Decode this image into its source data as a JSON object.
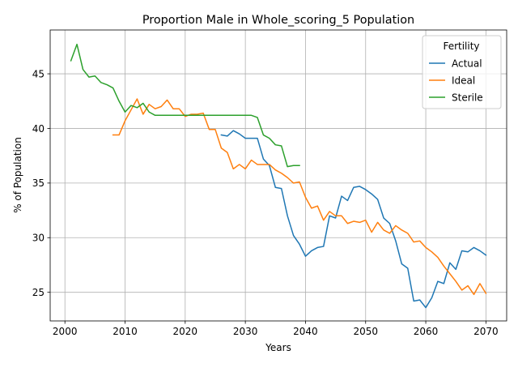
{
  "chart_data": {
    "type": "line",
    "title": "Proportion Male in Whole_scoring_5 Population",
    "xlabel": "Years",
    "ylabel": "% of Population",
    "xlim": [
      1997.55,
      2073.45
    ],
    "ylim": [
      22.38,
      49.01
    ],
    "xticks": [
      2000,
      2010,
      2020,
      2030,
      2040,
      2050,
      2060,
      2070
    ],
    "yticks": [
      25,
      30,
      35,
      40,
      45
    ],
    "grid": true,
    "legend": {
      "title": "Fertility",
      "placement": "top-right"
    },
    "series": [
      {
        "name": "Actual",
        "color": "#1f77b4",
        "x": [
          2026,
          2027,
          2028,
          2029,
          2030,
          2031,
          2032,
          2033,
          2034,
          2035,
          2036,
          2037,
          2038,
          2039,
          2040,
          2041,
          2042,
          2043,
          2044,
          2045,
          2046,
          2047,
          2048,
          2049,
          2050,
          2051,
          2052,
          2053,
          2054,
          2055,
          2056,
          2057,
          2058,
          2059,
          2060,
          2061,
          2062,
          2063,
          2064,
          2065,
          2066,
          2067,
          2068,
          2069,
          2070
        ],
        "values": [
          39.4,
          39.3,
          39.8,
          39.5,
          39.1,
          39.1,
          39.1,
          37.2,
          36.6,
          34.6,
          34.5,
          32.0,
          30.2,
          29.4,
          28.3,
          28.8,
          29.1,
          29.2,
          32.0,
          31.8,
          33.8,
          33.4,
          34.6,
          34.7,
          34.4,
          34.0,
          33.5,
          31.8,
          31.3,
          29.7,
          27.6,
          27.2,
          24.2,
          24.3,
          23.6,
          24.5,
          26.0,
          25.8,
          27.7,
          27.1,
          28.8,
          28.7,
          29.1,
          28.8,
          28.4
        ]
      },
      {
        "name": "Ideal",
        "color": "#ff7f0e",
        "x": [
          2008,
          2009,
          2010,
          2011,
          2012,
          2013,
          2014,
          2015,
          2016,
          2017,
          2018,
          2019,
          2020,
          2021,
          2022,
          2023,
          2024,
          2025,
          2026,
          2027,
          2028,
          2029,
          2030,
          2031,
          2032,
          2033,
          2034,
          2035,
          2036,
          2037,
          2038,
          2039,
          2040,
          2041,
          2042,
          2043,
          2044,
          2045,
          2046,
          2047,
          2048,
          2049,
          2050,
          2051,
          2052,
          2053,
          2054,
          2055,
          2056,
          2057,
          2058,
          2059,
          2060,
          2061,
          2062,
          2063,
          2064,
          2065,
          2066,
          2067,
          2068,
          2069,
          2070
        ],
        "values": [
          39.4,
          39.4,
          40.7,
          41.7,
          42.7,
          41.3,
          42.2,
          41.8,
          42.0,
          42.6,
          41.8,
          41.8,
          41.1,
          41.3,
          41.3,
          41.4,
          39.9,
          39.9,
          38.2,
          37.8,
          36.3,
          36.7,
          36.3,
          37.1,
          36.7,
          36.7,
          36.7,
          36.2,
          35.9,
          35.5,
          35.0,
          35.1,
          33.7,
          32.7,
          32.9,
          31.6,
          32.4,
          32.0,
          32.0,
          31.3,
          31.5,
          31.4,
          31.6,
          30.5,
          31.4,
          30.7,
          30.4,
          31.1,
          30.7,
          30.4,
          29.6,
          29.7,
          29.1,
          28.7,
          28.2,
          27.4,
          26.7,
          26.0,
          25.2,
          25.6,
          24.8,
          25.8,
          24.9
        ]
      },
      {
        "name": "Sterile",
        "color": "#2ca02c",
        "x": [
          2001,
          2002,
          2003,
          2004,
          2005,
          2006,
          2007,
          2008,
          2009,
          2010,
          2011,
          2012,
          2013,
          2014,
          2015,
          2016,
          2017,
          2018,
          2019,
          2020,
          2021,
          2022,
          2023,
          2024,
          2025,
          2026,
          2027,
          2028,
          2029,
          2030,
          2031,
          2032,
          2033,
          2034,
          2035,
          2036,
          2037,
          2038,
          2039
        ],
        "values": [
          46.2,
          47.7,
          45.4,
          44.7,
          44.8,
          44.2,
          44.0,
          43.7,
          42.5,
          41.5,
          42.1,
          41.9,
          42.3,
          41.5,
          41.2,
          41.2,
          41.2,
          41.2,
          41.2,
          41.2,
          41.2,
          41.2,
          41.2,
          41.2,
          41.2,
          41.2,
          41.2,
          41.2,
          41.2,
          41.2,
          41.2,
          41.0,
          39.4,
          39.1,
          38.5,
          38.4,
          36.5,
          36.6,
          36.6
        ]
      }
    ]
  }
}
